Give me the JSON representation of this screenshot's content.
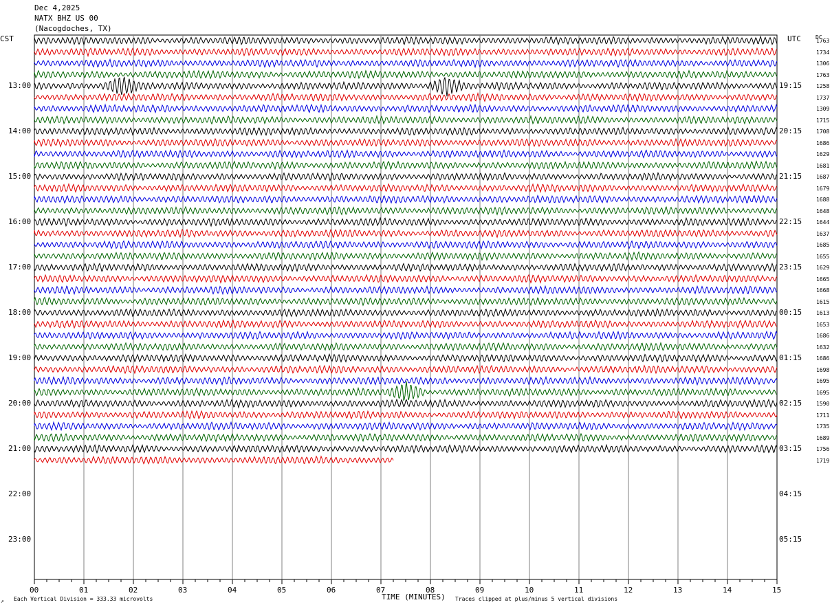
{
  "header": {
    "date": "Dec 4,2025",
    "station": "NATX BHZ US 00",
    "location": "(Nacogdoches, TX)"
  },
  "left_label": "CST",
  "right_label": "UTC",
  "dc_label": "DC",
  "footer": {
    "division": "Each Vertical Division =  333.33 microvolts",
    "xaxis_title": "TIME (MINUTES)",
    "clip_note": "Traces clipped at plus/minus 5 vertical divisions",
    "corner_mark": "↗"
  },
  "colors": {
    "black": "#000000",
    "red": "#e00000",
    "blue": "#0000e0",
    "green": "#006400",
    "grid": "#808080"
  },
  "chart_data": {
    "type": "line",
    "title": "NATX BHZ US 00",
    "xlabel": "TIME (MINUTES)",
    "xlim": [
      0,
      15
    ],
    "x_ticks": [
      "00",
      "01",
      "02",
      "03",
      "04",
      "05",
      "06",
      "07",
      "08",
      "09",
      "10",
      "11",
      "12",
      "13",
      "14",
      "15"
    ],
    "hour_labels_cst": [
      "13:00",
      "14:00",
      "15:00",
      "16:00",
      "17:00",
      "18:00",
      "19:00",
      "20:00",
      "21:00",
      "22:00",
      "23:00"
    ],
    "hour_labels_utc": [
      "19:15",
      "20:15",
      "21:15",
      "22:15",
      "23:15",
      "00:15",
      "01:15",
      "02:15",
      "03:15",
      "04:15",
      "05:15"
    ],
    "trace_colors_cycle": [
      "black",
      "red",
      "blue",
      "green"
    ],
    "dc_offsets": [
      1763,
      1734,
      1306,
      1763,
      1258,
      1737,
      1309,
      1715,
      1708,
      1686,
      1629,
      1681,
      1687,
      1679,
      1688,
      1648,
      1644,
      1637,
      1685,
      1655,
      1629,
      1665,
      1668,
      1615,
      1613,
      1653,
      1686,
      1632,
      1686,
      1698,
      1695,
      1695,
      1590,
      1711,
      1735,
      1689,
      1756,
      1719
    ],
    "events": [
      {
        "trace": 4,
        "minute": 1.75,
        "description": "burst"
      },
      {
        "trace": 4,
        "minute": 8.3,
        "description": "burst"
      },
      {
        "trace": 31,
        "minute": 7.5,
        "description": "burst"
      }
    ],
    "last_trace_end_minute": 7.25,
    "grid": true
  }
}
